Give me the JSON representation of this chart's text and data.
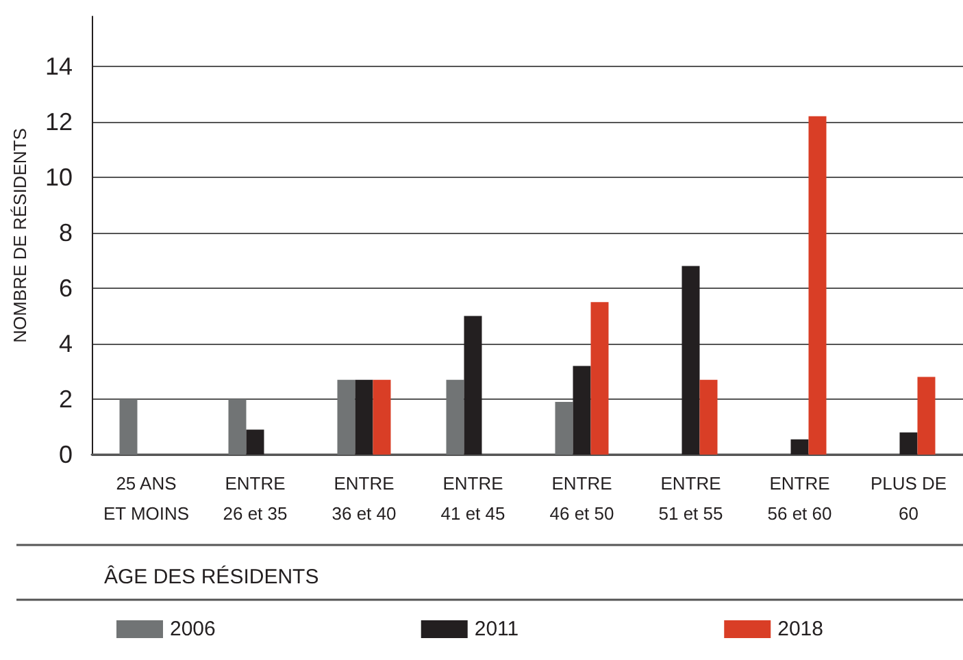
{
  "chart_data": {
    "type": "bar",
    "ylabel": "NOMBRE DE RÉSIDENTS",
    "xlabel": "ÂGE DES RÉSIDENTS",
    "categories": [
      "25 ANS\nET MOINS",
      "ENTRE\n26 et 35",
      "ENTRE\n36 et 40",
      "ENTRE\n41 et 45",
      "ENTRE\n46 et 50",
      "ENTRE\n51 et 55",
      "ENTRE\n56 et 60",
      "PLUS DE\n60"
    ],
    "series": [
      {
        "name": "2006",
        "color": "#717475",
        "values": [
          2.0,
          2.0,
          2.7,
          2.7,
          1.9,
          null,
          null,
          null
        ]
      },
      {
        "name": "2011",
        "color": "#231f20",
        "values": [
          null,
          0.9,
          2.7,
          5.0,
          3.2,
          6.8,
          0.55,
          0.8
        ]
      },
      {
        "name": "2018",
        "color": "#d93e26",
        "values": [
          null,
          null,
          2.7,
          null,
          5.5,
          2.7,
          12.2,
          2.8
        ]
      }
    ],
    "ylim": [
      0,
      15.8
    ],
    "yticks": [
      0,
      2,
      4,
      6,
      8,
      10,
      12,
      14
    ],
    "grid": "y",
    "legend": "bottom"
  }
}
